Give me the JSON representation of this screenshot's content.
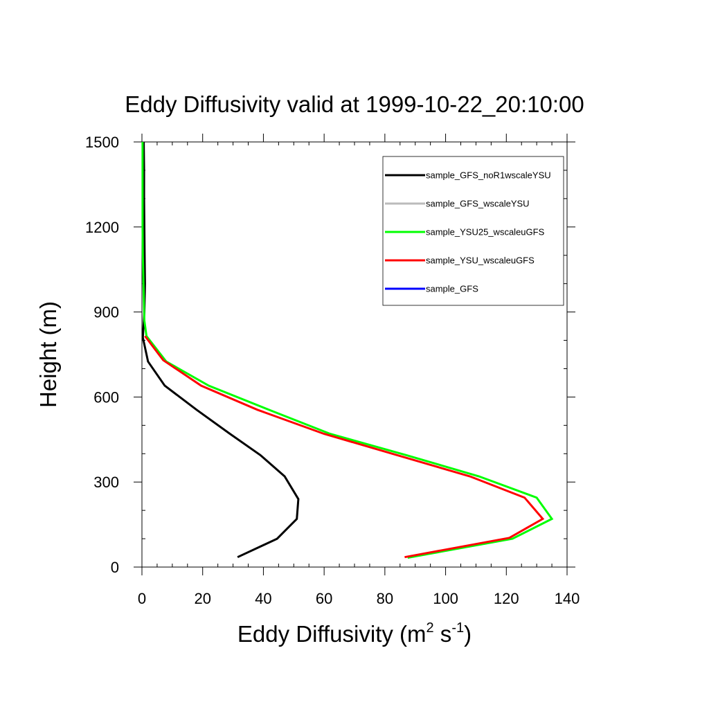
{
  "chart_data": {
    "type": "line",
    "title": "Eddy Diffusivity valid at 1999-10-22_20:10:00",
    "xlabel": "Eddy Diffusivity (m",
    "xlabel_sup1": "2",
    "xlabel_mid": " s",
    "xlabel_sup2": "-1",
    "xlabel_end": ")",
    "ylabel": "Height (m)",
    "xlim": [
      0,
      140
    ],
    "ylim": [
      0,
      1500
    ],
    "xticks": [
      0,
      20,
      40,
      60,
      80,
      100,
      120,
      140
    ],
    "yticks": [
      0,
      300,
      600,
      900,
      1200,
      1500
    ],
    "x_minor_step": 5,
    "y_minor_step": 100,
    "legend_position": "top-right",
    "series": [
      {
        "name": "sample_GFS_noR1wscaleYSU",
        "color": "#000000",
        "points": [
          [
            31.5,
            35
          ],
          [
            44.5,
            100
          ],
          [
            51,
            170
          ],
          [
            51.5,
            240
          ],
          [
            47,
            320
          ],
          [
            39,
            395
          ],
          [
            29,
            470
          ],
          [
            18,
            555
          ],
          [
            7.5,
            640
          ],
          [
            2,
            725
          ],
          [
            0.3,
            810
          ],
          [
            0.8,
            900
          ],
          [
            1,
            1000
          ],
          [
            0.9,
            1100
          ],
          [
            0.8,
            1200
          ],
          [
            0.7,
            1300
          ],
          [
            0.7,
            1400
          ],
          [
            0.6,
            1500
          ]
        ]
      },
      {
        "name": "sample_GFS_wscaleYSU",
        "color": "#bbbbbb",
        "points": []
      },
      {
        "name": "sample_YSU25_wscaleuGFS",
        "color": "#00ff00",
        "points": [
          [
            87.5,
            33
          ],
          [
            122,
            100
          ],
          [
            135,
            170
          ],
          [
            130,
            245
          ],
          [
            111,
            320
          ],
          [
            87,
            395
          ],
          [
            62,
            470
          ],
          [
            43,
            550
          ],
          [
            22,
            640
          ],
          [
            8,
            725
          ],
          [
            1.5,
            815
          ],
          [
            0.8,
            870
          ],
          [
            0.5,
            1000
          ],
          [
            0.3,
            1100
          ],
          [
            0.2,
            1200
          ],
          [
            0.2,
            1300
          ],
          [
            0.2,
            1400
          ],
          [
            0.2,
            1500
          ]
        ]
      },
      {
        "name": "sample_YSU_wscaleuGFS",
        "color": "#ff0000",
        "points": [
          [
            86.5,
            35
          ],
          [
            121,
            103
          ],
          [
            132,
            170
          ],
          [
            126,
            245
          ],
          [
            108,
            320
          ],
          [
            84,
            395
          ],
          [
            60,
            470
          ],
          [
            38,
            555
          ],
          [
            19.5,
            640
          ],
          [
            7,
            730
          ],
          [
            1,
            815
          ]
        ]
      },
      {
        "name": "sample_GFS",
        "color": "#0000ff",
        "points": []
      }
    ]
  }
}
